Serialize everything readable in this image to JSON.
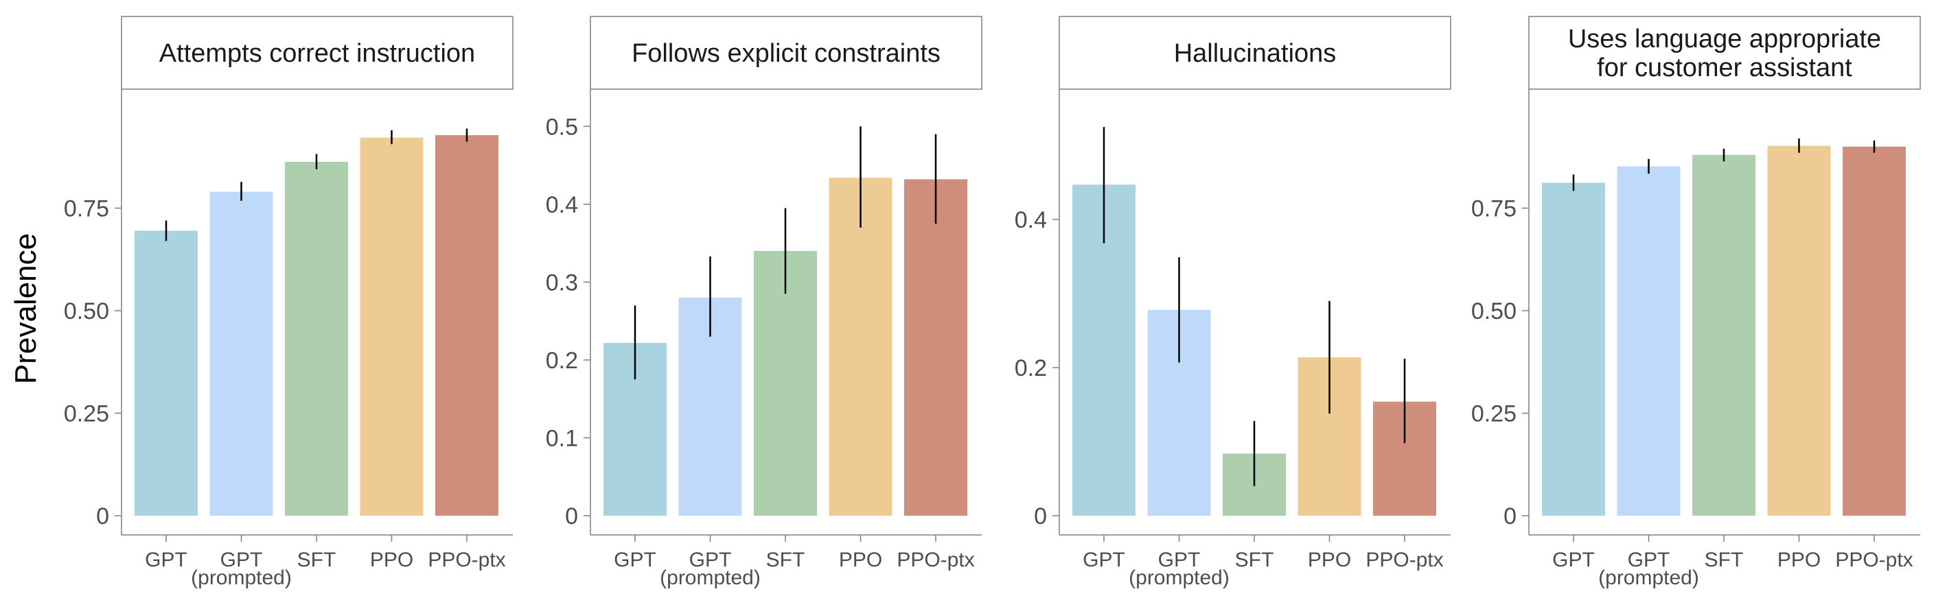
{
  "figure": {
    "ylabel": "Prevalence"
  },
  "chart_data": [
    {
      "type": "bar",
      "title": "Attempts correct instruction",
      "categories": [
        "GPT",
        "GPT (prompted)",
        "SFT",
        "PPO",
        "PPO-ptx"
      ],
      "values": [
        0.695,
        0.79,
        0.863,
        0.922,
        0.928
      ],
      "error_bars": [
        [
          0.67,
          0.72
        ],
        [
          0.768,
          0.814
        ],
        [
          0.845,
          0.882
        ],
        [
          0.906,
          0.94
        ],
        [
          0.912,
          0.944
        ]
      ],
      "ylim": [
        0,
        0.995
      ],
      "yticks": [
        0,
        0.25,
        0.5,
        0.75
      ],
      "ytick_labels": [
        "0",
        "0.25",
        "0.50",
        "0.75"
      ],
      "ylabel": "Prevalence",
      "xlabel": "",
      "grid": false
    },
    {
      "type": "bar",
      "title": "Follows explicit constraints",
      "categories": [
        "GPT",
        "GPT (prompted)",
        "SFT",
        "PPO",
        "PPO-ptx"
      ],
      "values": [
        0.222,
        0.28,
        0.34,
        0.434,
        0.432
      ],
      "error_bars": [
        [
          0.175,
          0.27
        ],
        [
          0.23,
          0.333
        ],
        [
          0.285,
          0.395
        ],
        [
          0.37,
          0.5
        ],
        [
          0.375,
          0.49
        ]
      ],
      "ylim": [
        0,
        0.524
      ],
      "yticks": [
        0,
        0.1,
        0.2,
        0.3,
        0.4,
        0.5
      ],
      "ytick_labels": [
        "0",
        "0.1",
        "0.2",
        "0.3",
        "0.4",
        "0.5"
      ],
      "xlabel": "",
      "grid": false
    },
    {
      "type": "bar",
      "title": "Hallucinations",
      "categories": [
        "GPT",
        "GPT (prompted)",
        "SFT",
        "PPO",
        "PPO-ptx"
      ],
      "values": [
        0.447,
        0.278,
        0.084,
        0.214,
        0.154
      ],
      "error_bars": [
        [
          0.368,
          0.525
        ],
        [
          0.207,
          0.349
        ],
        [
          0.04,
          0.128
        ],
        [
          0.138,
          0.29
        ],
        [
          0.098,
          0.212
        ]
      ],
      "ylim": [
        0,
        0.551
      ],
      "yticks": [
        0,
        0.2,
        0.4
      ],
      "ytick_labels": [
        "0",
        "0.2",
        "0.4"
      ],
      "xlabel": "",
      "grid": false
    },
    {
      "type": "bar",
      "title": "Uses language appropriate for customer assistant",
      "title_lines": [
        "Uses language appropriate",
        "for customer assistant"
      ],
      "categories": [
        "GPT",
        "GPT (prompted)",
        "SFT",
        "PPO",
        "PPO-ptx"
      ],
      "values": [
        0.812,
        0.852,
        0.88,
        0.902,
        0.9
      ],
      "error_bars": [
        [
          0.792,
          0.832
        ],
        [
          0.834,
          0.87
        ],
        [
          0.864,
          0.895
        ],
        [
          0.885,
          0.92
        ],
        [
          0.885,
          0.915
        ]
      ],
      "ylim": [
        0,
        0.995
      ],
      "yticks": [
        0,
        0.25,
        0.5,
        0.75
      ],
      "ytick_labels": [
        "0",
        "0.25",
        "0.50",
        "0.75"
      ],
      "xlabel": "",
      "grid": false
    }
  ],
  "category_display": [
    {
      "line1": "GPT",
      "line2": "(prompted)"
    }
  ],
  "colors": {
    "bars": [
      "#a9d3de",
      "#bfd9fb",
      "#aecfae",
      "#efcb94",
      "#cf8d7c"
    ],
    "error_bar": "#000000",
    "axis": "#7f7f7f",
    "tick_label": "#4d4d4d",
    "title": "#1a1a1a",
    "ylabel": "#000000",
    "title_box_border": "#7f7f7f"
  }
}
